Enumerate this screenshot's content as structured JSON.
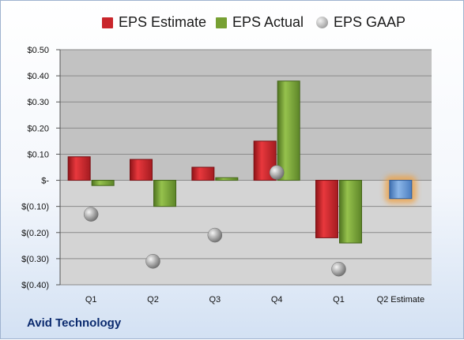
{
  "company": "Avid Technology",
  "legend": [
    {
      "name": "EPS Estimate",
      "color": "#c9252b"
    },
    {
      "name": "EPS Actual",
      "color": "#77a033"
    },
    {
      "name": "EPS GAAP",
      "color": "#a8a8a8"
    }
  ],
  "chart_data": {
    "type": "bar",
    "categories": [
      "Q1",
      "Q2",
      "Q3",
      "Q4",
      "Q1",
      "Q2 Estimate"
    ],
    "series": [
      {
        "name": "EPS Estimate",
        "values": [
          0.09,
          0.08,
          0.05,
          0.15,
          -0.22,
          -0.07
        ]
      },
      {
        "name": "EPS Actual",
        "values": [
          -0.02,
          -0.1,
          0.01,
          0.38,
          -0.24,
          null
        ]
      },
      {
        "name": "EPS GAAP",
        "values": [
          -0.13,
          -0.31,
          -0.21,
          0.03,
          -0.34,
          null
        ]
      }
    ],
    "ylim": [
      -0.4,
      0.5
    ],
    "yticks": [
      0.5,
      0.4,
      0.3,
      0.2,
      0.1,
      0,
      -0.1,
      -0.2,
      -0.3,
      -0.4
    ],
    "ytick_labels": [
      "$0.50",
      "$0.40",
      "$0.30",
      "$0.20",
      "$0.10",
      "$-",
      "$(0.10)",
      "$(0.20)",
      "$(0.30)",
      "$(0.40)"
    ],
    "grid": true,
    "legend_position": "top",
    "highlight": {
      "category_index": 5,
      "color": "#6a9bd8",
      "glow": "#f0a040"
    }
  }
}
